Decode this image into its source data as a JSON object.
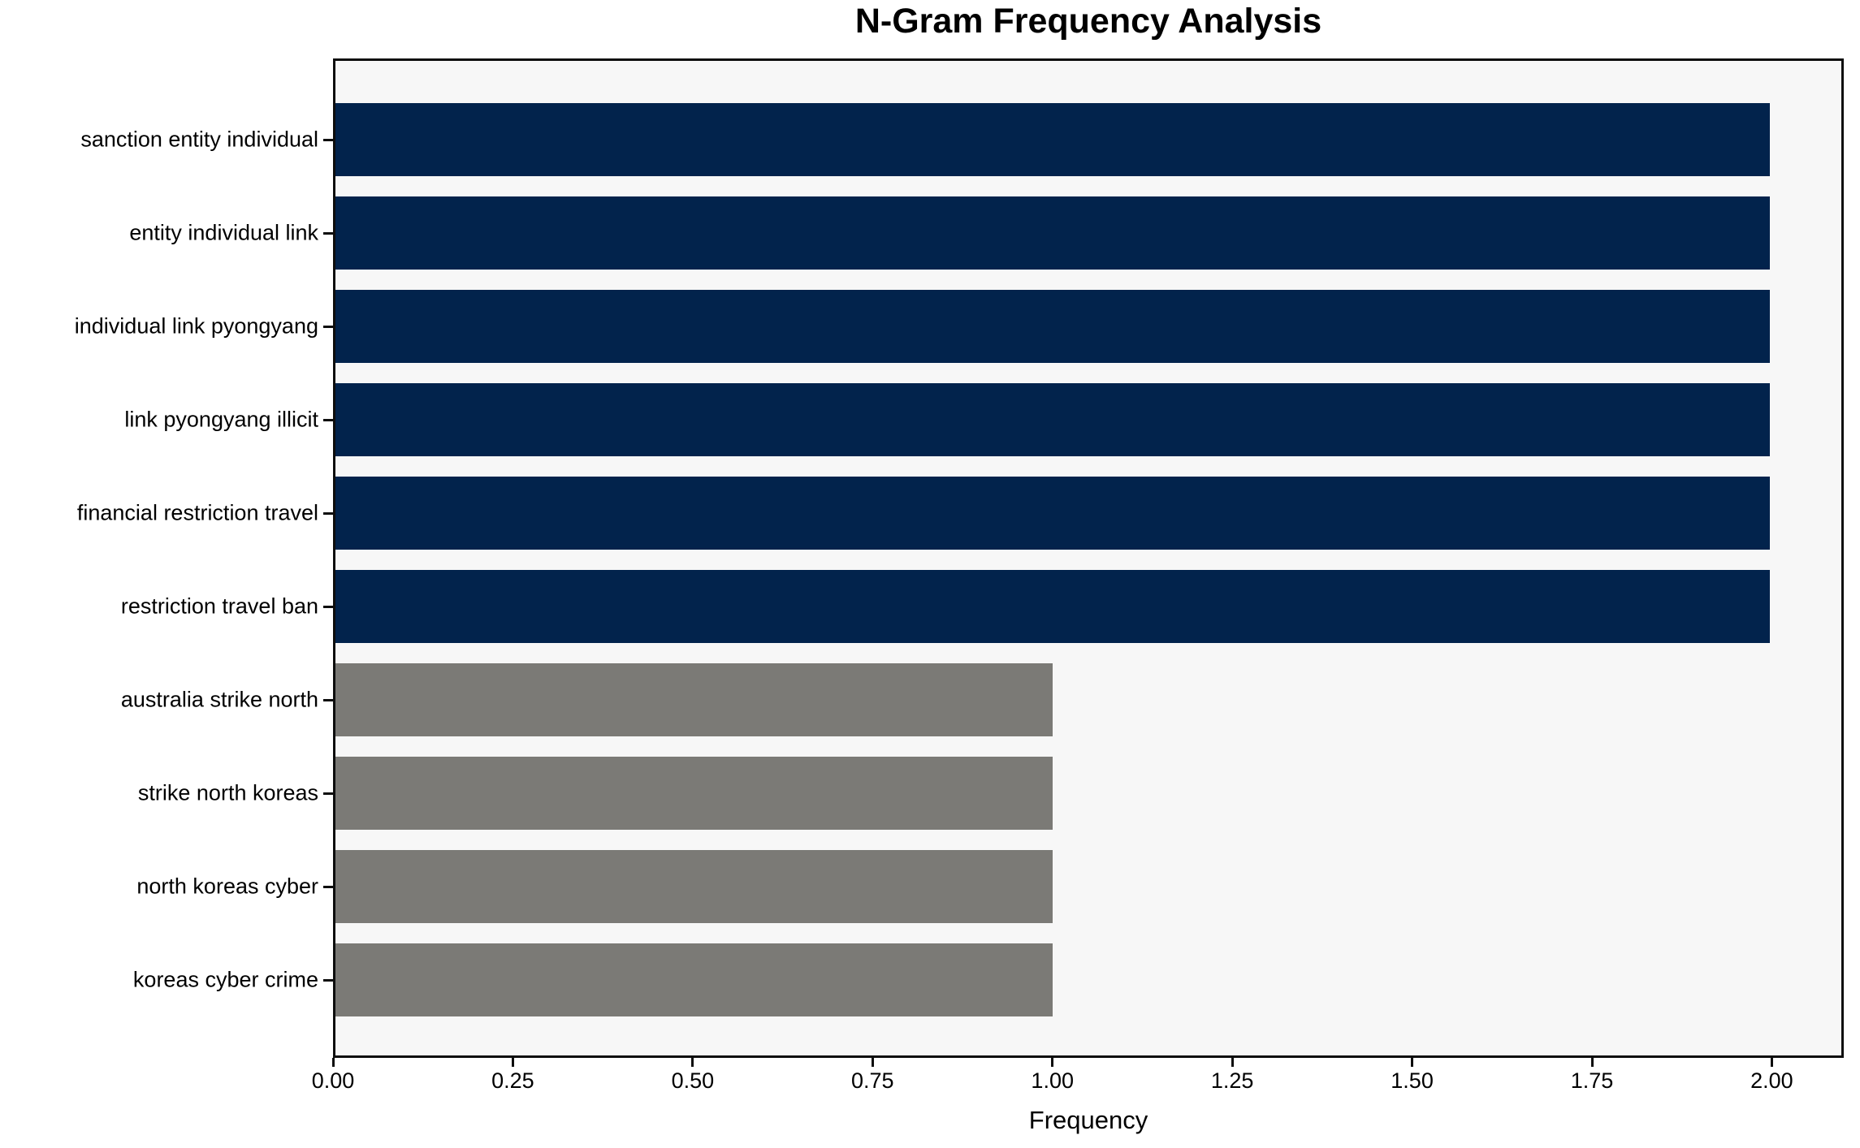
{
  "chart_data": {
    "type": "bar",
    "orientation": "horizontal",
    "title": "N-Gram Frequency Analysis",
    "xlabel": "Frequency",
    "ylabel": "",
    "categories": [
      "sanction entity individual",
      "entity individual link",
      "individual link pyongyang",
      "link pyongyang illicit",
      "financial restriction travel",
      "restriction travel ban",
      "australia strike north",
      "strike north koreas",
      "north koreas cyber",
      "koreas cyber crime"
    ],
    "values": [
      2,
      2,
      2,
      2,
      2,
      2,
      1,
      1,
      1,
      1
    ],
    "bar_colors": [
      "#02234c",
      "#02234c",
      "#02234c",
      "#02234c",
      "#02234c",
      "#02234c",
      "#7b7a76",
      "#7b7a76",
      "#7b7a76",
      "#7b7a76"
    ],
    "xlim": [
      0,
      2.1
    ],
    "x_ticks": [
      0.0,
      0.25,
      0.5,
      0.75,
      1.0,
      1.25,
      1.5,
      1.75,
      2.0
    ],
    "x_tick_labels": [
      "0.00",
      "0.25",
      "0.50",
      "0.75",
      "1.00",
      "1.25",
      "1.50",
      "1.75",
      "2.00"
    ],
    "grid": false,
    "legend": false,
    "plot_background": "#f7f7f7",
    "figure_background": "#ffffff",
    "accent_color_primary": "#02234c",
    "accent_color_secondary": "#7b7a76"
  }
}
